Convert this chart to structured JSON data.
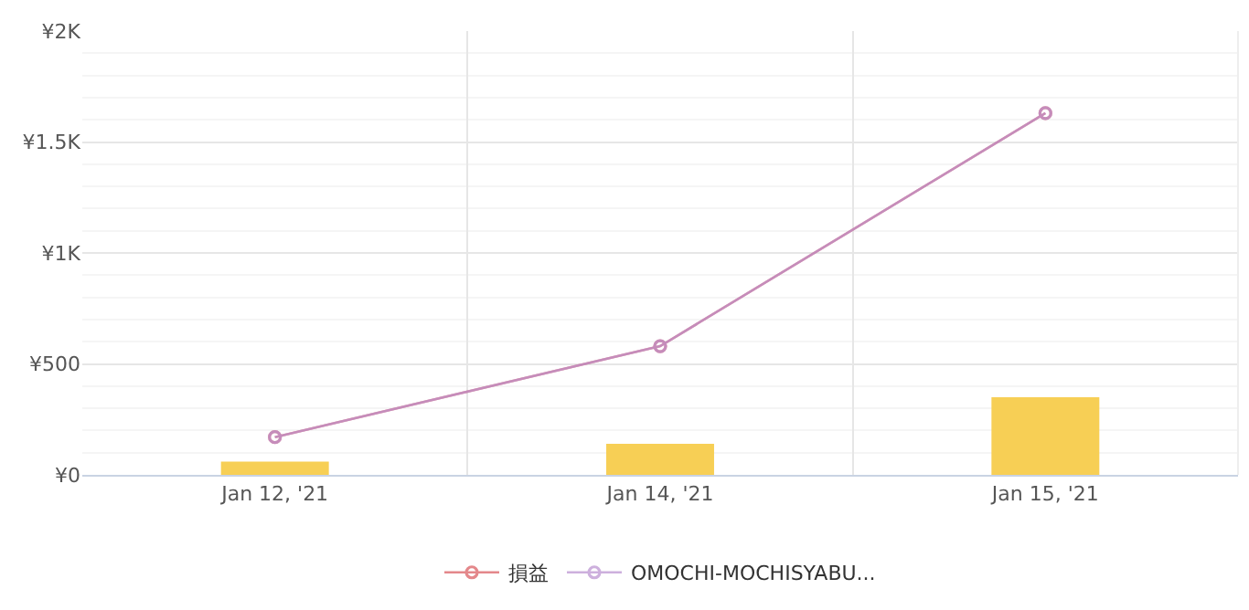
{
  "chart_data": {
    "type": "bar",
    "categories": [
      "Jan 12, '21",
      "Jan 14, '21",
      "Jan 15, '21"
    ],
    "series": [
      {
        "color": "#f7cf55",
        "values": [
          60,
          140,
          350
        ]
      },
      {
        "type": "line",
        "name": "損益",
        "color": "#d9575b",
        "values": [
          170,
          580,
          1630
        ]
      },
      {
        "type": "line",
        "name": "OMOCHI-MOCHISYABU...",
        "color": "#b98fd0",
        "values": [
          170,
          580,
          1630
        ]
      }
    ],
    "ylim": [
      0,
      2000
    ],
    "yticks": [
      {
        "value": 0,
        "label": "¥0"
      },
      {
        "value": 500,
        "label": "¥500"
      },
      {
        "value": 1000,
        "label": "¥1K"
      },
      {
        "value": 1500,
        "label": "¥1.5K"
      },
      {
        "value": 2000,
        "label": "¥2K"
      }
    ],
    "grid": true,
    "legend": "bottom",
    "marker": "circle",
    "line_style": "solid"
  }
}
